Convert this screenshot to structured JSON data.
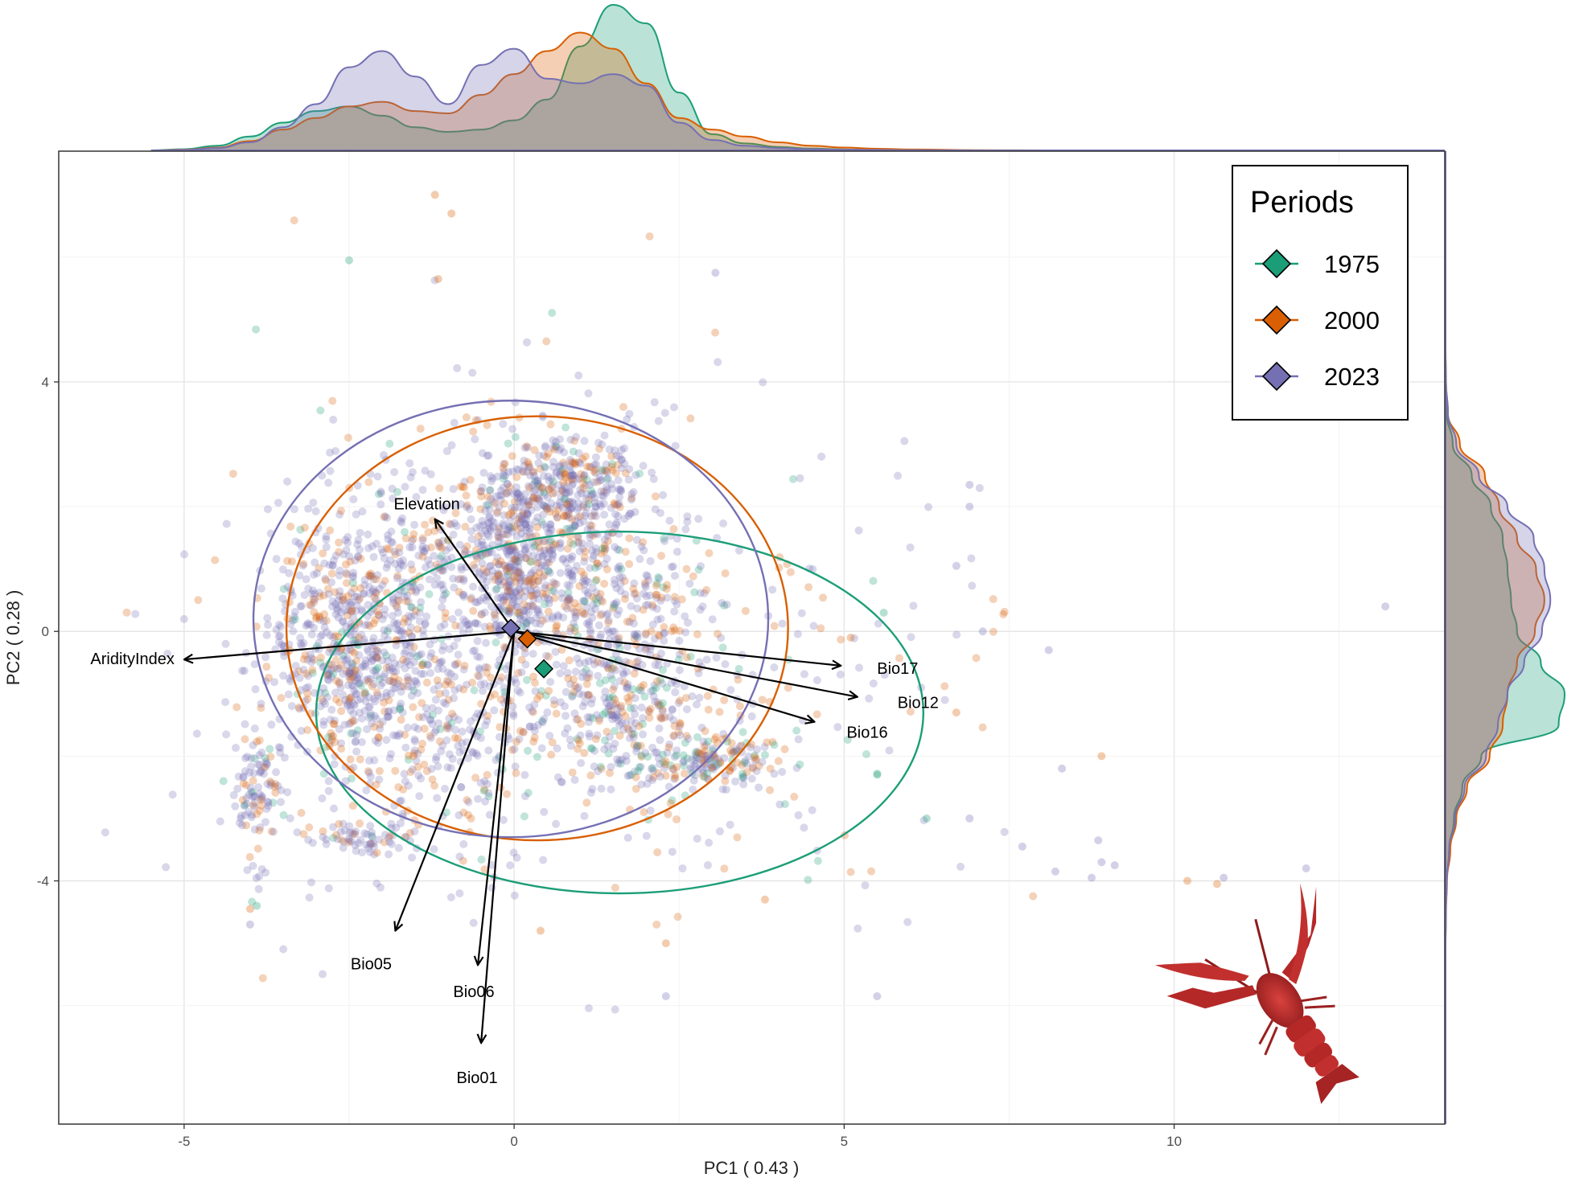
{
  "chart_data": {
    "type": "scatter",
    "xlabel": "PC1 ( 0.43 )",
    "ylabel": "PC2 ( 0.28 )",
    "xlim": [
      -6.9,
      14.1
    ],
    "ylim": [
      -7.9,
      7.7
    ],
    "x_ticks": [
      -5,
      0,
      5,
      10
    ],
    "y_ticks": [
      -4,
      0,
      4
    ],
    "grid": true,
    "legend": {
      "title": "Periods",
      "placement": "top-right",
      "entries": [
        {
          "label": "1975",
          "color": "#1b9e77"
        },
        {
          "label": "2000",
          "color": "#d95f02"
        },
        {
          "label": "2023",
          "color": "#7570b3"
        }
      ]
    },
    "centroids": [
      {
        "period": "1975",
        "x": 0.45,
        "y": -0.6
      },
      {
        "period": "2000",
        "x": 0.2,
        "y": -0.12
      },
      {
        "period": "2023",
        "x": -0.05,
        "y": 0.05
      }
    ],
    "ellipses": [
      {
        "period": "1975",
        "cx": 1.6,
        "cy": -1.3,
        "rx": 4.6,
        "ry": 2.9
      },
      {
        "period": "2000",
        "cx": 0.35,
        "cy": 0.05,
        "rx": 3.8,
        "ry": 3.4
      },
      {
        "period": "2023",
        "cx": -0.05,
        "cy": 0.2,
        "rx": 3.9,
        "ry": 3.5
      }
    ],
    "loadings": [
      {
        "label": "Elevation",
        "x": -1.2,
        "y": 1.8
      },
      {
        "label": "AridityIndex",
        "x": -5.0,
        "y": -0.45
      },
      {
        "label": "Bio17",
        "x": 4.95,
        "y": -0.55
      },
      {
        "label": "Bio12",
        "x": 5.2,
        "y": -1.05
      },
      {
        "label": "Bio16",
        "x": 4.55,
        "y": -1.45
      },
      {
        "label": "Bio05",
        "x": -1.8,
        "y": -4.8
      },
      {
        "label": "Bio06",
        "x": -0.55,
        "y": -5.35
      },
      {
        "label": "Bio01",
        "x": -0.5,
        "y": -6.6
      }
    ],
    "point_clusters": [
      {
        "cx": -2.2,
        "cy": 0.4,
        "sx": 0.75,
        "sy": 0.9,
        "n": 520,
        "mix": [
          0.06,
          0.22,
          0.72
        ]
      },
      {
        "cx": -2.6,
        "cy": -0.8,
        "sx": 0.6,
        "sy": 0.6,
        "n": 220,
        "mix": [
          0.08,
          0.22,
          0.7
        ]
      },
      {
        "cx": 0.3,
        "cy": 1.7,
        "sx": 0.8,
        "sy": 0.75,
        "n": 520,
        "mix": [
          0.05,
          0.2,
          0.75
        ]
      },
      {
        "cx": 0.9,
        "cy": 2.4,
        "sx": 0.5,
        "sy": 0.35,
        "n": 180,
        "mix": [
          0.06,
          0.24,
          0.7
        ]
      },
      {
        "cx": -0.1,
        "cy": 0.6,
        "sx": 0.35,
        "sy": 0.6,
        "n": 220,
        "mix": [
          0.05,
          0.25,
          0.7
        ]
      },
      {
        "cx": 1.4,
        "cy": 0.3,
        "sx": 0.9,
        "sy": 0.7,
        "n": 280,
        "mix": [
          0.1,
          0.25,
          0.65
        ]
      },
      {
        "cx": 1.7,
        "cy": -1.4,
        "sx": 0.7,
        "sy": 0.6,
        "n": 260,
        "mix": [
          0.14,
          0.32,
          0.54
        ]
      },
      {
        "cx": 3.0,
        "cy": -2.1,
        "sx": 0.5,
        "sy": 0.2,
        "n": 150,
        "mix": [
          0.18,
          0.32,
          0.5
        ]
      },
      {
        "cx": -1.0,
        "cy": -1.8,
        "sx": 0.85,
        "sy": 0.7,
        "n": 260,
        "mix": [
          0.08,
          0.27,
          0.65
        ]
      },
      {
        "cx": -3.9,
        "cy": -2.6,
        "sx": 0.2,
        "sy": 0.55,
        "n": 110,
        "mix": [
          0.06,
          0.24,
          0.7
        ]
      },
      {
        "cx": -2.3,
        "cy": -3.3,
        "sx": 0.4,
        "sy": 0.15,
        "n": 70,
        "mix": [
          0.05,
          0.25,
          0.7
        ]
      },
      {
        "cx": 0.6,
        "cy": -0.2,
        "sx": 2.6,
        "sy": 2.0,
        "n": 420,
        "mix": [
          0.08,
          0.28,
          0.64
        ]
      },
      {
        "cx": 4.5,
        "cy": -1.5,
        "sx": 1.6,
        "sy": 1.6,
        "n": 45,
        "mix": [
          0.15,
          0.35,
          0.5
        ]
      }
    ],
    "outlier_points": [
      {
        "x": -1.2,
        "y": 7.0,
        "period": "2000"
      },
      {
        "x": -0.95,
        "y": 6.7,
        "period": "2000"
      },
      {
        "x": -2.5,
        "y": 5.95,
        "period": "1975"
      },
      {
        "x": -1.15,
        "y": 5.65,
        "period": "2000"
      },
      {
        "x": 3.05,
        "y": 5.75,
        "period": "2023"
      },
      {
        "x": 6.9,
        "y": 2.35,
        "period": "2023"
      },
      {
        "x": 6.9,
        "y": 2.0,
        "period": "2023"
      },
      {
        "x": 6.7,
        "y": 1.05,
        "period": "2023"
      },
      {
        "x": 7.1,
        "y": 0.0,
        "period": "2023"
      },
      {
        "x": 8.1,
        "y": -0.3,
        "period": "2023"
      },
      {
        "x": 8.3,
        "y": -2.2,
        "period": "2023"
      },
      {
        "x": 8.9,
        "y": -2.0,
        "period": "2000"
      },
      {
        "x": 7.7,
        "y": -3.45,
        "period": "2023"
      },
      {
        "x": 8.2,
        "y": -3.85,
        "period": "2023"
      },
      {
        "x": 8.75,
        "y": -3.95,
        "period": "2023"
      },
      {
        "x": 8.9,
        "y": -3.7,
        "period": "2023"
      },
      {
        "x": 9.1,
        "y": -3.75,
        "period": "2023"
      },
      {
        "x": 8.85,
        "y": -3.35,
        "period": "2023"
      },
      {
        "x": 10.2,
        "y": -4.0,
        "period": "2000"
      },
      {
        "x": 10.65,
        "y": -4.05,
        "period": "2000"
      },
      {
        "x": 10.75,
        "y": -3.95,
        "period": "2023"
      },
      {
        "x": 12.0,
        "y": -3.8,
        "period": "2023"
      },
      {
        "x": 13.2,
        "y": 0.4,
        "period": "2023"
      },
      {
        "x": 6.25,
        "y": -3.0,
        "period": "1975"
      },
      {
        "x": 6.9,
        "y": -3.0,
        "period": "2023"
      },
      {
        "x": 5.5,
        "y": -5.85,
        "period": "2023"
      },
      {
        "x": 2.3,
        "y": -5.85,
        "period": "2023"
      },
      {
        "x": 2.3,
        "y": -5.0,
        "period": "2000"
      },
      {
        "x": -4.0,
        "y": -4.7,
        "period": "2023"
      },
      {
        "x": -3.9,
        "y": -4.4,
        "period": "1975"
      },
      {
        "x": -4.0,
        "y": -4.45,
        "period": "2000"
      },
      {
        "x": 6.7,
        "y": -1.3,
        "period": "2000"
      },
      {
        "x": 5.5,
        "y": -2.3,
        "period": "1975"
      },
      {
        "x": 0.4,
        "y": -4.8,
        "period": "2000"
      },
      {
        "x": 3.8,
        "y": -4.3,
        "period": "2000"
      },
      {
        "x": 5.1,
        "y": -0.1,
        "period": "2000"
      },
      {
        "x": 5.6,
        "y": 0.3,
        "period": "1975"
      }
    ],
    "density_x": {
      "x": [
        -5.5,
        -5.0,
        -4.5,
        -4.0,
        -3.5,
        -3.0,
        -2.5,
        -2.0,
        -1.5,
        -1.0,
        -0.5,
        0.0,
        0.5,
        1.0,
        1.5,
        2.0,
        2.5,
        3.0,
        3.5,
        4.0,
        4.5,
        5.0,
        5.5,
        6.0,
        7.0,
        8.0,
        9.0,
        10.0
      ],
      "series": [
        {
          "name": "1975",
          "values": [
            0.0,
            0.005,
            0.02,
            0.06,
            0.12,
            0.17,
            0.19,
            0.15,
            0.1,
            0.08,
            0.09,
            0.13,
            0.22,
            0.45,
            0.63,
            0.55,
            0.25,
            0.07,
            0.03,
            0.015,
            0.008,
            0.004,
            0.002,
            0.001,
            0.0,
            0.0,
            0.0,
            0.0
          ]
        },
        {
          "name": "2000",
          "values": [
            0.0,
            0.003,
            0.012,
            0.04,
            0.09,
            0.14,
            0.19,
            0.21,
            0.17,
            0.16,
            0.24,
            0.33,
            0.43,
            0.51,
            0.44,
            0.29,
            0.14,
            0.09,
            0.06,
            0.035,
            0.02,
            0.012,
            0.007,
            0.004,
            0.001,
            0.0,
            0.0,
            0.0
          ]
        },
        {
          "name": "2023",
          "values": [
            0.0,
            0.002,
            0.01,
            0.035,
            0.1,
            0.2,
            0.36,
            0.43,
            0.32,
            0.2,
            0.37,
            0.44,
            0.31,
            0.29,
            0.33,
            0.28,
            0.12,
            0.045,
            0.02,
            0.01,
            0.005,
            0.003,
            0.002,
            0.001,
            0.0,
            0.0,
            0.0,
            0.0
          ]
        }
      ]
    },
    "density_y": {
      "y": [
        -5.5,
        -5.0,
        -4.5,
        -4.0,
        -3.5,
        -3.0,
        -2.5,
        -2.0,
        -1.5,
        -1.0,
        -0.5,
        0.0,
        0.5,
        1.0,
        1.5,
        2.0,
        2.5,
        3.0,
        3.5,
        4.0,
        4.5,
        5.0
      ],
      "series": [
        {
          "name": "1975",
          "values": [
            0.0,
            0.0,
            0.003,
            0.01,
            0.03,
            0.07,
            0.14,
            0.3,
            0.95,
            1.0,
            0.8,
            0.6,
            0.55,
            0.52,
            0.48,
            0.38,
            0.22,
            0.06,
            0.01,
            0.002,
            0.0,
            0.0
          ]
        },
        {
          "name": "2000",
          "values": [
            0.0,
            0.0,
            0.004,
            0.012,
            0.04,
            0.09,
            0.18,
            0.37,
            0.48,
            0.52,
            0.6,
            0.75,
            0.83,
            0.76,
            0.6,
            0.45,
            0.33,
            0.12,
            0.02,
            0.004,
            0.0,
            0.0
          ]
        },
        {
          "name": "2023",
          "values": [
            0.0,
            0.0,
            0.003,
            0.01,
            0.03,
            0.08,
            0.16,
            0.34,
            0.44,
            0.52,
            0.66,
            0.81,
            0.88,
            0.83,
            0.74,
            0.52,
            0.28,
            0.09,
            0.02,
            0.003,
            0.0,
            0.0
          ]
        }
      ]
    }
  }
}
